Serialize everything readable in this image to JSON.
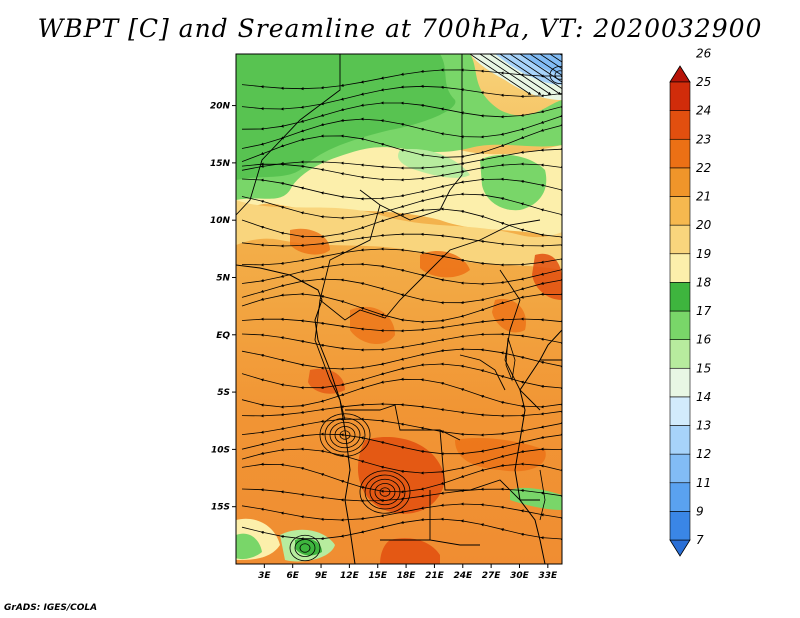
{
  "title": "WBPT [C] and Sreamline at 700hPa, VT: 2020032900",
  "footer": "GrADS: IGES/COLA",
  "map": {
    "lon_labels": [
      "3E",
      "6E",
      "9E",
      "12E",
      "15E",
      "18E",
      "21E",
      "24E",
      "27E",
      "30E",
      "33E"
    ],
    "lat_labels": [
      "20N",
      "15N",
      "10N",
      "5N",
      "EQ",
      "5S",
      "10S",
      "15S"
    ],
    "lon_range": [
      0,
      34.5
    ],
    "lat_range": [
      -20,
      24.5
    ]
  },
  "colorbar": {
    "labels": [
      "7",
      "9",
      "11",
      "12",
      "13",
      "14",
      "15",
      "16",
      "17",
      "18",
      "19",
      "20",
      "21",
      "22",
      "23",
      "24",
      "25",
      "26"
    ],
    "colors": [
      "#2a6fd6",
      "#3a86e6",
      "#5aa2f0",
      "#82bcf5",
      "#a7d3fa",
      "#d2ebfc",
      "#e8f7e4",
      "#b7ec9e",
      "#79d669",
      "#3eb53e",
      "#fcefab",
      "#f9d57d",
      "#f6b84f",
      "#f0952a",
      "#ec7015",
      "#e24f0f",
      "#d12c0a",
      "#b71408"
    ]
  },
  "icons": {
    "streamline": "streamline-arrow",
    "colorbar_min": "triangle-down",
    "colorbar_max": "triangle-up"
  }
}
